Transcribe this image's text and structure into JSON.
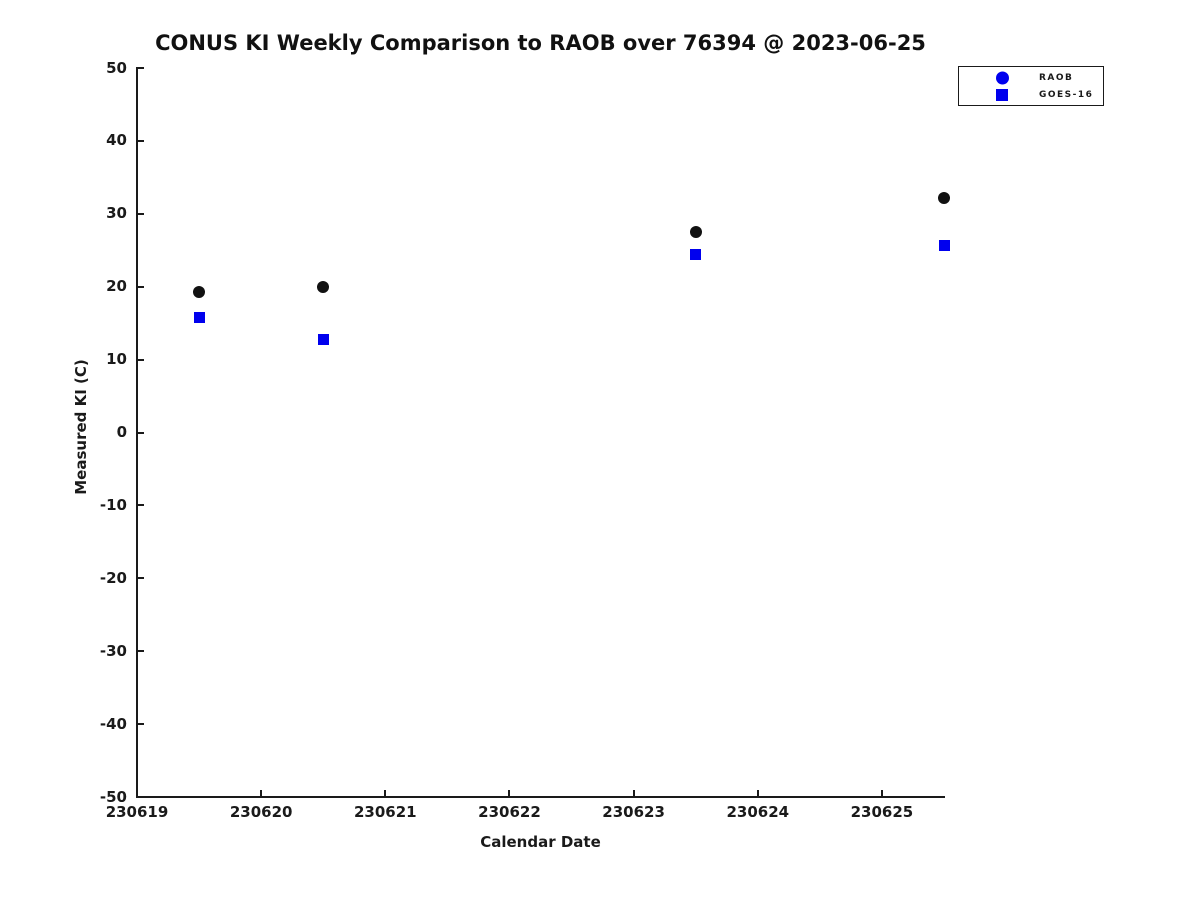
{
  "chart_data": {
    "type": "scatter",
    "title": "CONUS KI Weekly Comparison to RAOB over 76394 @ 2023-06-25",
    "xlabel": "Calendar Date",
    "ylabel": "Measured KI (C)",
    "xlim": [
      230619,
      230625.5
    ],
    "ylim": [
      -50,
      50
    ],
    "x_ticks": [
      230619,
      230620,
      230621,
      230622,
      230623,
      230624,
      230625
    ],
    "y_ticks": [
      50,
      40,
      30,
      20,
      10,
      0,
      -10,
      -20,
      -30,
      -40,
      -50
    ],
    "grid": false,
    "legend_position": "top-right-outside-plot",
    "series": [
      {
        "name": "RAOB",
        "marker": "circle",
        "plot_color": "#111111",
        "legend_color": "#0000ee",
        "x": [
          230619.5,
          230620.5,
          230623.5,
          230625.5
        ],
        "y": [
          19.3,
          20.0,
          27.5,
          32.1
        ]
      },
      {
        "name": "GOES-16",
        "marker": "square",
        "plot_color": "#0000ee",
        "legend_color": "#0000ee",
        "x": [
          230619.5,
          230620.5,
          230623.5,
          230625.5
        ],
        "y": [
          15.8,
          12.7,
          24.4,
          25.6
        ]
      }
    ]
  }
}
